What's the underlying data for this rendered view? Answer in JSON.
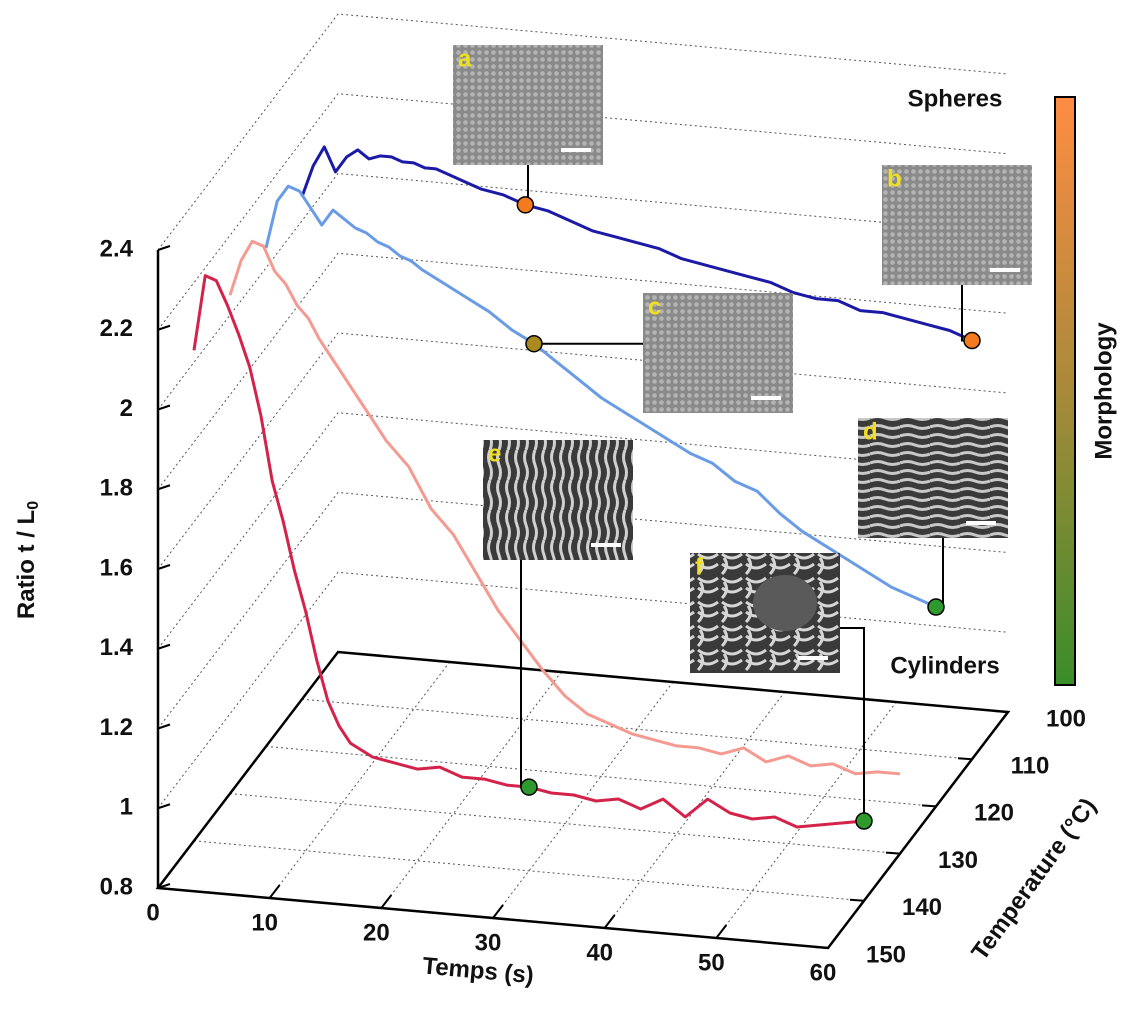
{
  "chart_data": {
    "type": "line3d",
    "xlabel": "Temps (s)",
    "ylabel": "Ratio t / L",
    "ylabel_sub": "0",
    "zlabel": "Temperature (°C)",
    "xlim": [
      0,
      60
    ],
    "xticks": [
      0,
      10,
      20,
      30,
      40,
      50,
      60
    ],
    "ylim": [
      0.8,
      2.4
    ],
    "yticks": [
      0.8,
      1,
      1.2,
      1.4,
      1.6,
      1.8,
      2,
      2.2,
      2.4
    ],
    "zlim": [
      100,
      150
    ],
    "zticks": [
      100,
      110,
      120,
      130,
      140,
      150
    ],
    "grid": true,
    "x": [
      0,
      1,
      2,
      3,
      4,
      5,
      6,
      7,
      8,
      9,
      10,
      11,
      12,
      13,
      14,
      16,
      18,
      20,
      22,
      24,
      26,
      28,
      30,
      32,
      34,
      36,
      38,
      40,
      42,
      44,
      46,
      48,
      50,
      52,
      54,
      56,
      58,
      60
    ],
    "series": [
      {
        "color": "#1a1aa6",
        "temperature": 110,
        "values": [
          2.06,
          2.14,
          2.19,
          2.13,
          2.17,
          2.19,
          2.17,
          2.18,
          2.18,
          2.17,
          2.17,
          2.16,
          2.16,
          2.15,
          2.14,
          2.12,
          2.11,
          2.09,
          2.08,
          2.06,
          2.04,
          2.03,
          2.02,
          2.01,
          1.99,
          1.98,
          1.97,
          1.96,
          1.95,
          1.93,
          1.92,
          1.92,
          1.9,
          1.9,
          1.89,
          1.88,
          1.87,
          1.85
        ]
      },
      {
        "color": "#6a9be6",
        "temperature": 120,
        "values": [
          2.05,
          2.17,
          2.21,
          2.2,
          2.16,
          2.12,
          2.16,
          2.14,
          2.12,
          2.11,
          2.09,
          2.08,
          2.06,
          2.05,
          2.03,
          2.0,
          1.97,
          1.94,
          1.9,
          1.87,
          1.83,
          1.79,
          1.75,
          1.72,
          1.69,
          1.66,
          1.63,
          1.61,
          1.57,
          1.55,
          1.5,
          1.46,
          1.43,
          1.4,
          1.37,
          1.34,
          1.32,
          1.3
        ]
      },
      {
        "color": "#f59a90",
        "temperature": 130,
        "values": [
          2.05,
          2.14,
          2.19,
          2.18,
          2.12,
          2.09,
          2.04,
          2.01,
          1.96,
          1.92,
          1.88,
          1.84,
          1.8,
          1.76,
          1.72,
          1.66,
          1.56,
          1.5,
          1.41,
          1.32,
          1.25,
          1.18,
          1.12,
          1.08,
          1.06,
          1.04,
          1.03,
          1.02,
          1.02,
          1.01,
          1.03,
          1.0,
          1.02,
          1.0,
          1.01,
          0.99,
          1.0,
          1.0
        ]
      },
      {
        "color": "#d4234a",
        "temperature": 140,
        "values": [
          2.03,
          2.22,
          2.21,
          2.15,
          2.08,
          2.0,
          1.88,
          1.72,
          1.62,
          1.5,
          1.4,
          1.28,
          1.18,
          1.12,
          1.08,
          1.05,
          1.04,
          1.03,
          1.04,
          1.02,
          1.02,
          1.01,
          1.01,
          1.0,
          1.0,
          0.99,
          1.0,
          0.98,
          1.01,
          0.97,
          1.02,
          0.99,
          0.98,
          0.99,
          0.97,
          0.98,
          0.99,
          1.0
        ]
      }
    ],
    "annotations": [
      {
        "label": "a",
        "series": 0,
        "x": 20,
        "color": "#f47a20"
      },
      {
        "label": "b",
        "series": 0,
        "x": 60,
        "color": "#f47a20"
      },
      {
        "label": "c",
        "series": 1,
        "x": 24,
        "color": "#a88a1e"
      },
      {
        "label": "d",
        "series": 1,
        "x": 60,
        "color": "#2e9a2e"
      },
      {
        "label": "e",
        "series": 3,
        "x": 30,
        "color": "#2e9a2e"
      },
      {
        "label": "f",
        "series": 3,
        "x": 60,
        "color": "#2e9a2e"
      }
    ],
    "regions": {
      "top": "Spheres",
      "bottom": "Cylinders"
    },
    "colorbar": {
      "label": "Morphology",
      "colors": [
        "#ff8c42",
        "#a88a3a",
        "#3a8c2a"
      ]
    }
  }
}
